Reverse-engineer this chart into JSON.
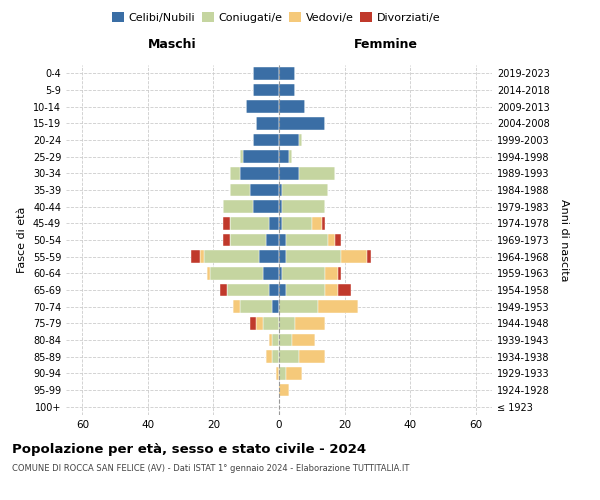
{
  "age_groups": [
    "100+",
    "95-99",
    "90-94",
    "85-89",
    "80-84",
    "75-79",
    "70-74",
    "65-69",
    "60-64",
    "55-59",
    "50-54",
    "45-49",
    "40-44",
    "35-39",
    "30-34",
    "25-29",
    "20-24",
    "15-19",
    "10-14",
    "5-9",
    "0-4"
  ],
  "birth_years": [
    "≤ 1923",
    "1924-1928",
    "1929-1933",
    "1934-1938",
    "1939-1943",
    "1944-1948",
    "1949-1953",
    "1954-1958",
    "1959-1963",
    "1964-1968",
    "1969-1973",
    "1974-1978",
    "1979-1983",
    "1984-1988",
    "1989-1993",
    "1994-1998",
    "1999-2003",
    "2004-2008",
    "2009-2013",
    "2014-2018",
    "2019-2023"
  ],
  "maschi": {
    "celibi": [
      0,
      0,
      0,
      0,
      0,
      0,
      2,
      3,
      5,
      6,
      4,
      3,
      8,
      9,
      12,
      11,
      8,
      7,
      10,
      8,
      8
    ],
    "coniugati": [
      0,
      0,
      0,
      2,
      2,
      5,
      10,
      13,
      16,
      17,
      11,
      12,
      9,
      6,
      3,
      1,
      0,
      0,
      0,
      0,
      0
    ],
    "vedovi": [
      0,
      0,
      1,
      2,
      1,
      2,
      2,
      0,
      1,
      1,
      0,
      0,
      0,
      0,
      0,
      0,
      0,
      0,
      0,
      0,
      0
    ],
    "divorziati": [
      0,
      0,
      0,
      0,
      0,
      2,
      0,
      2,
      0,
      3,
      2,
      2,
      0,
      0,
      0,
      0,
      0,
      0,
      0,
      0,
      0
    ]
  },
  "femmine": {
    "nubili": [
      0,
      0,
      0,
      0,
      0,
      0,
      0,
      2,
      1,
      2,
      2,
      1,
      1,
      1,
      6,
      3,
      6,
      14,
      8,
      5,
      5
    ],
    "coniugate": [
      0,
      0,
      2,
      6,
      4,
      5,
      12,
      12,
      13,
      17,
      13,
      9,
      13,
      14,
      11,
      1,
      1,
      0,
      0,
      0,
      0
    ],
    "vedove": [
      0,
      3,
      5,
      8,
      7,
      9,
      12,
      4,
      4,
      8,
      2,
      3,
      0,
      0,
      0,
      0,
      0,
      0,
      0,
      0,
      0
    ],
    "divorziate": [
      0,
      0,
      0,
      0,
      0,
      0,
      0,
      4,
      1,
      1,
      2,
      1,
      0,
      0,
      0,
      0,
      0,
      0,
      0,
      0,
      0
    ]
  },
  "colors": {
    "celibi": "#3a6ea5",
    "coniugati": "#c5d5a0",
    "vedovi": "#f5c97a",
    "divorziati": "#c0392b"
  },
  "title": "Popolazione per età, sesso e stato civile - 2024",
  "subtitle": "COMUNE DI ROCCA SAN FELICE (AV) - Dati ISTAT 1° gennaio 2024 - Elaborazione TUTTITALIA.IT",
  "xlabel_left": "Maschi",
  "xlabel_right": "Femmine",
  "ylabel_left": "Fasce di età",
  "ylabel_right": "Anni di nascita",
  "xlim": 65,
  "legend_labels": [
    "Celibi/Nubili",
    "Coniugati/e",
    "Vedovi/e",
    "Divorziati/e"
  ],
  "bg_color": "#ffffff",
  "grid_color": "#cccccc"
}
